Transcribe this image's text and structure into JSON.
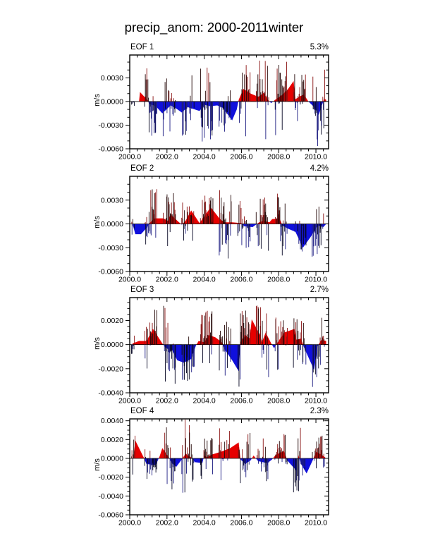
{
  "title": "precip_anom: 2000-2011winter",
  "colors": {
    "fill_pos": "#e60000",
    "fill_neg": "#1010dc",
    "spike_pos": "#8a1212",
    "spike_neg": "#1c1c82",
    "spike_pos_dark": "#220505",
    "spike_neg_dark": "#050522",
    "axis": "#000000"
  },
  "chart_data": {
    "type": "area",
    "title": "precip_anom: 2000-2011winter",
    "xlabel": "",
    "legend": "none",
    "grid": false,
    "xlim": [
      2000.0,
      2010.68
    ],
    "x_ticks": {
      "values": [
        2000,
        2002,
        2004,
        2006,
        2008,
        2010
      ],
      "labels": [
        "2000.0",
        "2002.0",
        "2004.0",
        "2006.0",
        "2008.0",
        "2010.0"
      ],
      "minor_step": 0.4
    },
    "charts": [
      {
        "title": "EOF 1",
        "variance": "5.3%",
        "ylabel": "m/s",
        "seed": 11,
        "ylim": [
          -0.006,
          0.0059
        ],
        "y_major": [
          0.003,
          0.0,
          -0.003,
          -0.006
        ],
        "y_tick_labels": [
          "0.0030",
          "0.0000",
          "-0.0030",
          "-0.0060"
        ],
        "y_minor_step": 0.001,
        "smooth": [
          [
            2000.5,
            0
          ],
          [
            2000.55,
            0.0012
          ],
          [
            2000.95,
            0.0002
          ],
          [
            2001.05,
            -0.0003
          ],
          [
            2001.4,
            -0.0006
          ],
          [
            2001.75,
            -0.0015
          ],
          [
            2002.2,
            -0.0005
          ],
          [
            2002.5,
            -0.0009
          ],
          [
            2002.8,
            -0.0014
          ],
          [
            2003.1,
            -0.0007
          ],
          [
            2003.35,
            -0.0009
          ],
          [
            2003.75,
            -0.0012
          ],
          [
            2004.0,
            -0.0004
          ],
          [
            2004.3,
            -0.0006
          ],
          [
            2004.7,
            -0.0005
          ],
          [
            2005.0,
            -0.0008
          ],
          [
            2005.5,
            -0.0024
          ],
          [
            2005.75,
            -0.001
          ],
          [
            2005.85,
            0.0002
          ],
          [
            2006.1,
            0.0016
          ],
          [
            2006.5,
            0.001
          ],
          [
            2006.9,
            0.0006
          ],
          [
            2007.2,
            0.0011
          ],
          [
            2007.45,
            0.0001
          ],
          [
            2007.6,
            -0.0002
          ],
          [
            2007.8,
            0.0002
          ],
          [
            2008.1,
            0.0007
          ],
          [
            2008.45,
            0.0014
          ],
          [
            2008.8,
            0.0026
          ],
          [
            2008.9,
            0.0003
          ],
          [
            2009.1,
            0.0006
          ],
          [
            2009.35,
            0.0009
          ],
          [
            2009.6,
            0.0
          ],
          [
            2009.9,
            -0.0007
          ],
          [
            2010.15,
            -0.0017
          ],
          [
            2010.35,
            -0.0003
          ],
          [
            2010.45,
            0.0004
          ],
          [
            2010.55,
            0.0002
          ]
        ],
        "clusters": [
          [
            2000,
            0.0008
          ],
          [
            2001,
            0.0042
          ],
          [
            2002,
            0.004
          ],
          [
            2003,
            0.004
          ],
          [
            2004,
            0.0048
          ],
          [
            2005,
            0.0035
          ],
          [
            2006,
            0.005
          ],
          [
            2007,
            0.005
          ],
          [
            2008,
            0.0045
          ],
          [
            2009,
            0.0036
          ],
          [
            2010,
            0.0048
          ]
        ]
      },
      {
        "title": "EOF 2",
        "variance": "4.2%",
        "ylabel": "m/s",
        "seed": 22,
        "ylim": [
          -0.006,
          0.006
        ],
        "y_major": [
          0.003,
          0.0,
          -0.003,
          -0.006
        ],
        "y_tick_labels": [
          "0.0030",
          "0.0000",
          "-0.0030",
          "-0.0060"
        ],
        "y_minor_step": 0.001,
        "smooth": [
          [
            2000.15,
            0
          ],
          [
            2000.3,
            -0.0013
          ],
          [
            2000.6,
            -0.0013
          ],
          [
            2000.95,
            -0.0004
          ],
          [
            2001.1,
            0.0002
          ],
          [
            2001.35,
            0.0007
          ],
          [
            2001.8,
            0.0007
          ],
          [
            2002.05,
            0.0004
          ],
          [
            2002.2,
            0.0012
          ],
          [
            2002.6,
            0.0003
          ],
          [
            2002.8,
            -0.0001
          ],
          [
            2003.0,
            0.0004
          ],
          [
            2003.3,
            0.0017
          ],
          [
            2003.75,
            0.0001
          ],
          [
            2003.95,
            0.0008
          ],
          [
            2004.35,
            0.0021
          ],
          [
            2004.85,
            0.0006
          ],
          [
            2005.1,
            0.0002
          ],
          [
            2005.5,
            0.0002
          ],
          [
            2006.0,
            0.0001
          ],
          [
            2006.15,
            -0.0003
          ],
          [
            2006.6,
            -0.0004
          ],
          [
            2006.95,
            0.0002
          ],
          [
            2007.2,
            0.0004
          ],
          [
            2007.5,
            0.0002
          ],
          [
            2007.65,
            0.0006
          ],
          [
            2008.05,
            0.0007
          ],
          [
            2008.2,
            -0.0002
          ],
          [
            2008.5,
            -0.0006
          ],
          [
            2008.9,
            -0.001
          ],
          [
            2009.3,
            -0.003
          ],
          [
            2009.7,
            -0.0017
          ],
          [
            2010.1,
            -0.0002
          ],
          [
            2010.4,
            -0.0004
          ],
          [
            2010.55,
            0
          ]
        ],
        "clusters": [
          [
            2000,
            0.0015
          ],
          [
            2001,
            0.0042
          ],
          [
            2002,
            0.0036
          ],
          [
            2003,
            0.003
          ],
          [
            2004,
            0.0034
          ],
          [
            2005,
            0.0045
          ],
          [
            2006,
            0.0032
          ],
          [
            2007,
            0.0034
          ],
          [
            2008,
            0.0042
          ],
          [
            2009,
            0.0028
          ],
          [
            2010,
            0.0038
          ]
        ]
      },
      {
        "title": "EOF 3",
        "variance": "2.7%",
        "ylabel": "m/s",
        "seed": 33,
        "ylim": [
          -0.004,
          0.0039
        ],
        "y_major": [
          0.002,
          0.0,
          -0.002,
          -0.004
        ],
        "y_tick_labels": [
          "0.0020",
          "0.0000",
          "-0.0020",
          "-0.0040"
        ],
        "y_minor_step": 0.0005,
        "smooth": [
          [
            2000.15,
            0.0001
          ],
          [
            2000.5,
            0.0003
          ],
          [
            2000.9,
            0.0003
          ],
          [
            2001.25,
            0.0013
          ],
          [
            2001.75,
            0.0001
          ],
          [
            2001.95,
            -0.0003
          ],
          [
            2002.3,
            -0.0005
          ],
          [
            2002.55,
            -0.0013
          ],
          [
            2002.9,
            -0.0015
          ],
          [
            2003.3,
            -0.0012
          ],
          [
            2003.55,
            -0.0001
          ],
          [
            2003.7,
            0.0003
          ],
          [
            2004.0,
            0.0002
          ],
          [
            2004.25,
            0.0008
          ],
          [
            2004.6,
            0.0006
          ],
          [
            2004.95,
            0.0002
          ],
          [
            2005.1,
            -0.0004
          ],
          [
            2005.5,
            -0.0013
          ],
          [
            2005.85,
            -0.0022
          ],
          [
            2005.95,
            0.0002
          ],
          [
            2006.2,
            0.0008
          ],
          [
            2006.45,
            0.0005
          ],
          [
            2006.55,
            0.0021
          ],
          [
            2007.0,
            0.0008
          ],
          [
            2007.1,
            0.0002
          ],
          [
            2007.3,
            0.001
          ],
          [
            2007.6,
            0.0001
          ],
          [
            2007.75,
            -0.0003
          ],
          [
            2007.95,
            0.0002
          ],
          [
            2008.3,
            0.001
          ],
          [
            2008.85,
            0.0013
          ],
          [
            2008.95,
            0.0004
          ],
          [
            2009.2,
            0.0005
          ],
          [
            2009.35,
            -0.0002
          ],
          [
            2009.9,
            -0.0021
          ],
          [
            2010.1,
            -0.0001
          ],
          [
            2010.3,
            0.0004
          ],
          [
            2010.55,
            0.0003
          ]
        ],
        "clusters": [
          [
            2000,
            0.0008
          ],
          [
            2001,
            0.0026
          ],
          [
            2002,
            0.0033
          ],
          [
            2003,
            0.0025
          ],
          [
            2004,
            0.003
          ],
          [
            2005,
            0.0027
          ],
          [
            2006,
            0.0028
          ],
          [
            2007,
            0.003
          ],
          [
            2008,
            0.0022
          ],
          [
            2009,
            0.0023
          ],
          [
            2010,
            0.0029
          ]
        ]
      },
      {
        "title": "EOF 4",
        "variance": "2.3%",
        "ylabel": "m/s",
        "seed": 44,
        "ylim": [
          -0.006,
          0.0042
        ],
        "y_major": [
          0.004,
          0.002,
          0.0,
          -0.002,
          -0.004,
          -0.006
        ],
        "y_tick_labels": [
          "0.0040",
          "0.0020",
          "0.0000",
          "-0.0020",
          "-0.0040",
          "-0.0060"
        ],
        "y_minor_step": 0.0005,
        "smooth": [
          [
            2000.2,
            0.0002
          ],
          [
            2000.3,
            0.0019
          ],
          [
            2000.75,
            0.0001
          ],
          [
            2000.9,
            -0.0006
          ],
          [
            2001.4,
            -0.0007
          ],
          [
            2001.6,
            0.0002
          ],
          [
            2001.75,
            0.0011
          ],
          [
            2002.1,
            0.0001
          ],
          [
            2002.25,
            -0.0005
          ],
          [
            2002.5,
            -0.0009
          ],
          [
            2002.8,
            -0.0001
          ],
          [
            2003.0,
            0.0005
          ],
          [
            2003.3,
            0.0001
          ],
          [
            2003.5,
            -0.0004
          ],
          [
            2003.9,
            -0.0005
          ],
          [
            2004.0,
            0.0003
          ],
          [
            2004.15,
            0.0001
          ],
          [
            2004.4,
            0.0004
          ],
          [
            2004.9,
            0.0007
          ],
          [
            2005.4,
            0.0011
          ],
          [
            2005.85,
            0.0017
          ],
          [
            2005.95,
            -0.0001
          ],
          [
            2006.2,
            -0.0006
          ],
          [
            2006.5,
            -0.0002
          ],
          [
            2006.65,
            0.0003
          ],
          [
            2006.9,
            -0.0003
          ],
          [
            2007.4,
            -0.0005
          ],
          [
            2007.65,
            -0.0001
          ],
          [
            2007.85,
            0.0004
          ],
          [
            2008.3,
            0.0008
          ],
          [
            2008.45,
            -0.0002
          ],
          [
            2008.95,
            -0.0013
          ],
          [
            2009.05,
            0.0004
          ],
          [
            2009.2,
            -0.0006
          ],
          [
            2009.5,
            -0.0016
          ],
          [
            2009.85,
            -0.0001
          ],
          [
            2010.0,
            0.0007
          ],
          [
            2010.3,
            0.0004
          ],
          [
            2010.5,
            0.0001
          ]
        ],
        "clusters": [
          [
            2000,
            0.0018
          ],
          [
            2001,
            0.002
          ],
          [
            2002,
            0.0032
          ],
          [
            2003,
            0.0038
          ],
          [
            2004,
            0.0021
          ],
          [
            2005,
            0.003
          ],
          [
            2006,
            0.0029
          ],
          [
            2007,
            0.0023
          ],
          [
            2008,
            0.0024
          ],
          [
            2009,
            0.0035
          ],
          [
            2010,
            0.0023
          ]
        ]
      }
    ]
  }
}
